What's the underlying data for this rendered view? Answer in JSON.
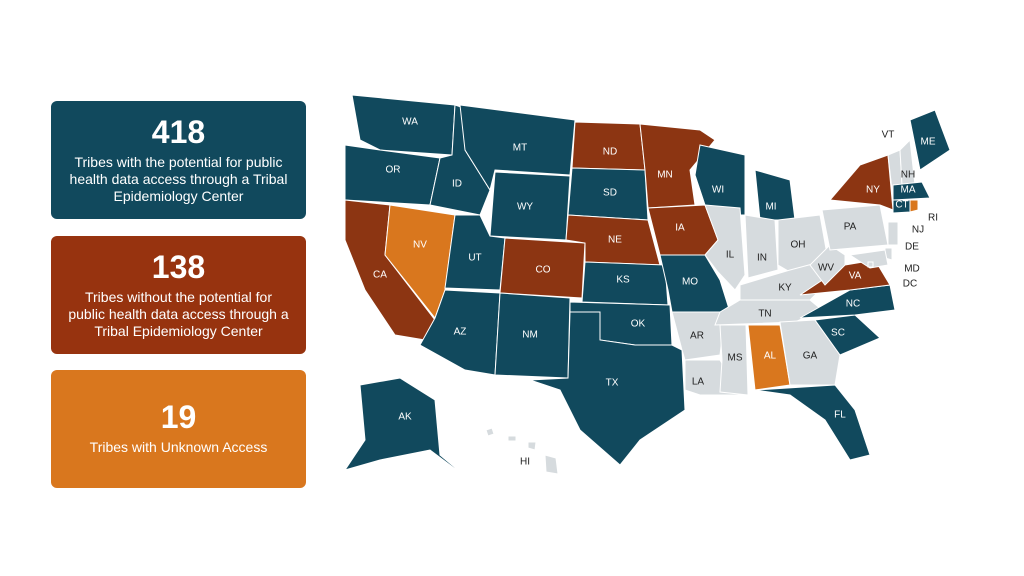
{
  "cards": [
    {
      "number": "418",
      "text": "Tribes with the potential for public health data access through a Tribal Epidemiology Center",
      "color": "#11495d"
    },
    {
      "number": "138",
      "text": "Tribes without the potential for public health data access through a Tribal Epidemiology Center",
      "color": "#97330f"
    },
    {
      "number": "19",
      "text": "Tribes with Unknown Access",
      "color": "#d9771e"
    }
  ],
  "map": {
    "states": [
      {
        "label": "WA",
        "color": "#11495d"
      },
      {
        "label": "OR",
        "color": "#11495d"
      },
      {
        "label": "CA",
        "color": "#8c3512"
      },
      {
        "label": "NV",
        "color": "#d9771e"
      },
      {
        "label": "ID",
        "color": "#11495d"
      },
      {
        "label": "MT",
        "color": "#11495d"
      },
      {
        "label": "WY",
        "color": "#11495d"
      },
      {
        "label": "UT",
        "color": "#11495d"
      },
      {
        "label": "CO",
        "color": "#8c3512"
      },
      {
        "label": "AZ",
        "color": "#11495d"
      },
      {
        "label": "NM",
        "color": "#11495d"
      },
      {
        "label": "ND",
        "color": "#8c3512"
      },
      {
        "label": "SD",
        "color": "#11495d"
      },
      {
        "label": "NE",
        "color": "#8c3512"
      },
      {
        "label": "KS",
        "color": "#11495d"
      },
      {
        "label": "OK",
        "color": "#11495d"
      },
      {
        "label": "TX",
        "color": "#11495d"
      },
      {
        "label": "MN",
        "color": "#8c3512"
      },
      {
        "label": "IA",
        "color": "#8c3512"
      },
      {
        "label": "MO",
        "color": "#11495d"
      },
      {
        "label": "AR",
        "color": "#d6dbde"
      },
      {
        "label": "LA",
        "color": "#d6dbde"
      },
      {
        "label": "WI",
        "color": "#11495d"
      },
      {
        "label": "IL",
        "color": "#d6dbde"
      },
      {
        "label": "MI",
        "color": "#11495d"
      },
      {
        "label": "IN",
        "color": "#d6dbde"
      },
      {
        "label": "OH",
        "color": "#d6dbde"
      },
      {
        "label": "KY",
        "color": "#d6dbde"
      },
      {
        "label": "TN",
        "color": "#d6dbde"
      },
      {
        "label": "MS",
        "color": "#d6dbde"
      },
      {
        "label": "AL",
        "color": "#d9771e"
      },
      {
        "label": "GA",
        "color": "#d6dbde"
      },
      {
        "label": "FL",
        "color": "#11495d"
      },
      {
        "label": "SC",
        "color": "#11495d"
      },
      {
        "label": "NC",
        "color": "#11495d"
      },
      {
        "label": "VA",
        "color": "#8c3512"
      },
      {
        "label": "WV",
        "color": "#d6dbde"
      },
      {
        "label": "PA",
        "color": "#d6dbde"
      },
      {
        "label": "NY",
        "color": "#8c3512"
      },
      {
        "label": "ME",
        "color": "#11495d"
      },
      {
        "label": "VT",
        "color": "#d6dbde"
      },
      {
        "label": "NH",
        "color": "#d6dbde"
      },
      {
        "label": "MA",
        "color": "#11495d"
      },
      {
        "label": "CT",
        "color": "#11495d"
      },
      {
        "label": "RI",
        "color": "#d9771e"
      },
      {
        "label": "NJ",
        "color": "#d6dbde"
      },
      {
        "label": "DE",
        "color": "#d6dbde"
      },
      {
        "label": "MD",
        "color": "#d6dbde"
      },
      {
        "label": "DC",
        "color": "#d6dbde"
      },
      {
        "label": "AK",
        "color": "#11495d"
      },
      {
        "label": "HI",
        "color": "#d6dbde"
      }
    ]
  }
}
